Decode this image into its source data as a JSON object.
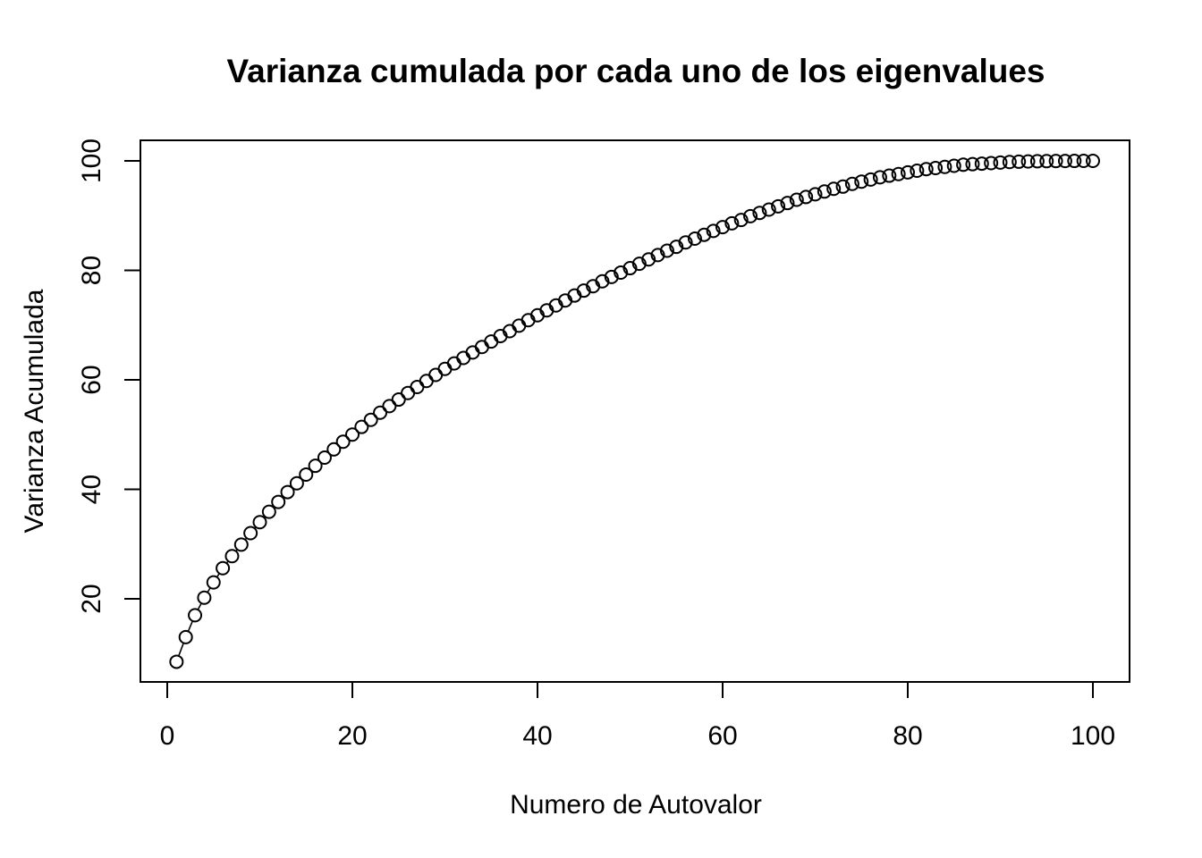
{
  "chart_data": {
    "type": "line",
    "title": "Varianza cumulada por cada uno de los eigenvalues",
    "xlabel": "Numero de Autovalor",
    "ylabel": "Varianza Acumulada",
    "xlim": [
      0,
      100
    ],
    "ylim": [
      20,
      100
    ],
    "xticks": [
      "0",
      "20",
      "40",
      "60",
      "80",
      "100"
    ],
    "yticks": [
      "20",
      "40",
      "60",
      "80",
      "100"
    ],
    "xtick_values": [
      0,
      20,
      40,
      60,
      80,
      100
    ],
    "ytick_values": [
      20,
      40,
      60,
      80,
      100
    ],
    "grid": false,
    "marker": "open-circle",
    "series": [
      {
        "x": [
          1,
          2,
          3,
          4,
          5,
          6,
          7,
          8,
          9,
          10,
          11,
          12,
          13,
          14,
          15,
          16,
          17,
          18,
          19,
          20,
          21,
          22,
          23,
          24,
          25,
          26,
          27,
          28,
          29,
          30,
          31,
          32,
          33,
          34,
          35,
          36,
          37,
          38,
          39,
          40,
          41,
          42,
          43,
          44,
          45,
          46,
          47,
          48,
          49,
          50,
          51,
          52,
          53,
          54,
          55,
          56,
          57,
          58,
          59,
          60,
          61,
          62,
          63,
          64,
          65,
          66,
          67,
          68,
          69,
          70,
          71,
          72,
          73,
          74,
          75,
          76,
          77,
          78,
          79,
          80,
          81,
          82,
          83,
          84,
          85,
          86,
          87,
          88,
          89,
          90,
          91,
          92,
          93,
          94,
          95,
          96,
          97,
          98,
          99,
          100
        ],
        "values": [
          8.5,
          13.0,
          17.0,
          20.2,
          23.0,
          25.6,
          27.8,
          29.9,
          32.0,
          34.0,
          35.9,
          37.7,
          39.5,
          41.1,
          42.7,
          44.3,
          45.8,
          47.3,
          48.7,
          50.0,
          51.4,
          52.7,
          54.0,
          55.2,
          56.4,
          57.6,
          58.7,
          59.8,
          60.9,
          62.0,
          63.0,
          64.0,
          65.0,
          66.0,
          67.0,
          68.0,
          68.9,
          69.9,
          70.9,
          71.8,
          72.7,
          73.6,
          74.5,
          75.4,
          76.3,
          77.1,
          78.0,
          78.8,
          79.6,
          80.4,
          81.2,
          82.0,
          82.8,
          83.6,
          84.3,
          85.1,
          85.8,
          86.5,
          87.2,
          87.9,
          88.6,
          89.2,
          89.9,
          90.5,
          91.1,
          91.7,
          92.3,
          92.9,
          93.4,
          93.9,
          94.4,
          94.9,
          95.3,
          95.8,
          96.2,
          96.6,
          97.0,
          97.3,
          97.6,
          97.9,
          98.2,
          98.5,
          98.7,
          98.9,
          99.1,
          99.3,
          99.4,
          99.5,
          99.6,
          99.7,
          99.8,
          99.85,
          99.9,
          99.93,
          99.95,
          99.97,
          99.98,
          99.99,
          99.995,
          100.0
        ]
      }
    ]
  }
}
